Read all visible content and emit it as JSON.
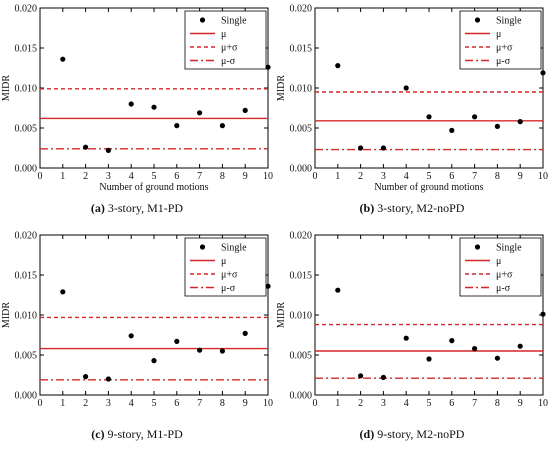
{
  "colors": {
    "mean": "#d62728",
    "points": "#000000",
    "axis": "#000000"
  },
  "chart_data": [
    {
      "type": "scatter",
      "caption_letter": "(a)",
      "caption_text": " 3-story, M1-PD",
      "xlabel": "Number of ground motions",
      "ylabel": "MIDR",
      "xlim": [
        0,
        10
      ],
      "ylim": [
        0,
        0.02
      ],
      "x_ticks": [
        0,
        1,
        2,
        3,
        4,
        5,
        6,
        7,
        8,
        9,
        10
      ],
      "x_tick_labels": [
        "0",
        "1",
        "2",
        "3",
        "4",
        "5",
        "6",
        "7",
        "8",
        "9",
        "10"
      ],
      "y_ticks": [
        0,
        0.005,
        0.01,
        0.015,
        0.02
      ],
      "y_tick_labels": [
        "0.000",
        "0.005",
        "0.010",
        "0.015",
        "0.020"
      ],
      "legend": {
        "placement": "top-right",
        "items": [
          "Single",
          "μ",
          "μ+σ",
          "μ-σ"
        ]
      },
      "series": [
        {
          "name": "Single",
          "x": [
            1,
            2,
            3,
            4,
            5,
            6,
            7,
            8,
            9,
            10
          ],
          "y": [
            0.0136,
            0.0026,
            0.0022,
            0.008,
            0.0076,
            0.0053,
            0.0069,
            0.0053,
            0.0072,
            0.0126
          ]
        }
      ],
      "lines": {
        "mu": 0.0062,
        "mu_plus_sigma": 0.0099,
        "mu_minus_sigma": 0.0024
      }
    },
    {
      "type": "scatter",
      "caption_letter": "(b)",
      "caption_text": " 3-story, M2-noPD",
      "xlabel": "Number of ground motions",
      "ylabel": "MIDR",
      "xlim": [
        0,
        10
      ],
      "ylim": [
        0,
        0.02
      ],
      "x_ticks": [
        0,
        1,
        2,
        3,
        4,
        5,
        6,
        7,
        8,
        9,
        10
      ],
      "x_tick_labels": [
        "0",
        "1",
        "2",
        "3",
        "4",
        "5",
        "6",
        "7",
        "8",
        "9",
        "10"
      ],
      "y_ticks": [
        0,
        0.005,
        0.01,
        0.015,
        0.02
      ],
      "y_tick_labels": [
        "0.000",
        "0.005",
        "0.010",
        "0.015",
        "0.020"
      ],
      "legend": {
        "placement": "top-right",
        "items": [
          "Single",
          "μ",
          "μ+σ",
          "μ-σ"
        ]
      },
      "series": [
        {
          "name": "Single",
          "x": [
            1,
            2,
            3,
            4,
            5,
            6,
            7,
            8,
            9,
            10
          ],
          "y": [
            0.0128,
            0.0025,
            0.0025,
            0.01,
            0.0064,
            0.0047,
            0.0064,
            0.0052,
            0.0058,
            0.0119
          ]
        }
      ],
      "lines": {
        "mu": 0.0059,
        "mu_plus_sigma": 0.0095,
        "mu_minus_sigma": 0.0023
      }
    },
    {
      "type": "scatter",
      "caption_letter": "(c)",
      "caption_text": " 9-story, M1-PD",
      "xlabel": "",
      "ylabel": "MIDR",
      "xlim": [
        0,
        10
      ],
      "ylim": [
        0,
        0.02
      ],
      "x_ticks": [
        0,
        1,
        2,
        3,
        4,
        5,
        6,
        7,
        8,
        9,
        10
      ],
      "x_tick_labels": [
        "0",
        "1",
        "2",
        "3",
        "4",
        "5",
        "6",
        "7",
        "8",
        "9",
        "10"
      ],
      "y_ticks": [
        0,
        0.005,
        0.01,
        0.015,
        0.02
      ],
      "y_tick_labels": [
        "0.000",
        "0.005",
        "0.010",
        "0.015",
        "0.020"
      ],
      "legend": {
        "placement": "top-right",
        "items": [
          "Single",
          "μ",
          "μ+σ",
          "μ-σ"
        ]
      },
      "series": [
        {
          "name": "Single",
          "x": [
            1,
            2,
            3,
            4,
            5,
            6,
            7,
            8,
            9,
            10
          ],
          "y": [
            0.0129,
            0.0023,
            0.002,
            0.0074,
            0.0043,
            0.0067,
            0.0056,
            0.0055,
            0.0077,
            0.0136
          ]
        }
      ],
      "lines": {
        "mu": 0.0058,
        "mu_plus_sigma": 0.0097,
        "mu_minus_sigma": 0.0019
      }
    },
    {
      "type": "scatter",
      "caption_letter": "(d)",
      "caption_text": " 9-story, M2-noPD",
      "xlabel": "",
      "ylabel": "MIDR",
      "xlim": [
        0,
        10
      ],
      "ylim": [
        0,
        0.02
      ],
      "x_ticks": [
        0,
        1,
        2,
        3,
        4,
        5,
        6,
        7,
        8,
        9,
        10
      ],
      "x_tick_labels": [
        "0",
        "1",
        "2",
        "3",
        "4",
        "5",
        "6",
        "7",
        "8",
        "9",
        "10"
      ],
      "y_ticks": [
        0,
        0.005,
        0.01,
        0.015,
        0.02
      ],
      "y_tick_labels": [
        "0.000",
        "0.005",
        "0.010",
        "0.015",
        "0.020"
      ],
      "legend": {
        "placement": "top-right",
        "items": [
          "Single",
          "μ",
          "μ+σ",
          "μ-σ"
        ]
      },
      "series": [
        {
          "name": "Single",
          "x": [
            1,
            2,
            3,
            4,
            5,
            6,
            7,
            8,
            9,
            10
          ],
          "y": [
            0.0131,
            0.0024,
            0.0022,
            0.0071,
            0.0045,
            0.0068,
            0.0058,
            0.0046,
            0.0061,
            0.0101
          ]
        }
      ],
      "lines": {
        "mu": 0.0055,
        "mu_plus_sigma": 0.0088,
        "mu_minus_sigma": 0.0021
      }
    }
  ]
}
